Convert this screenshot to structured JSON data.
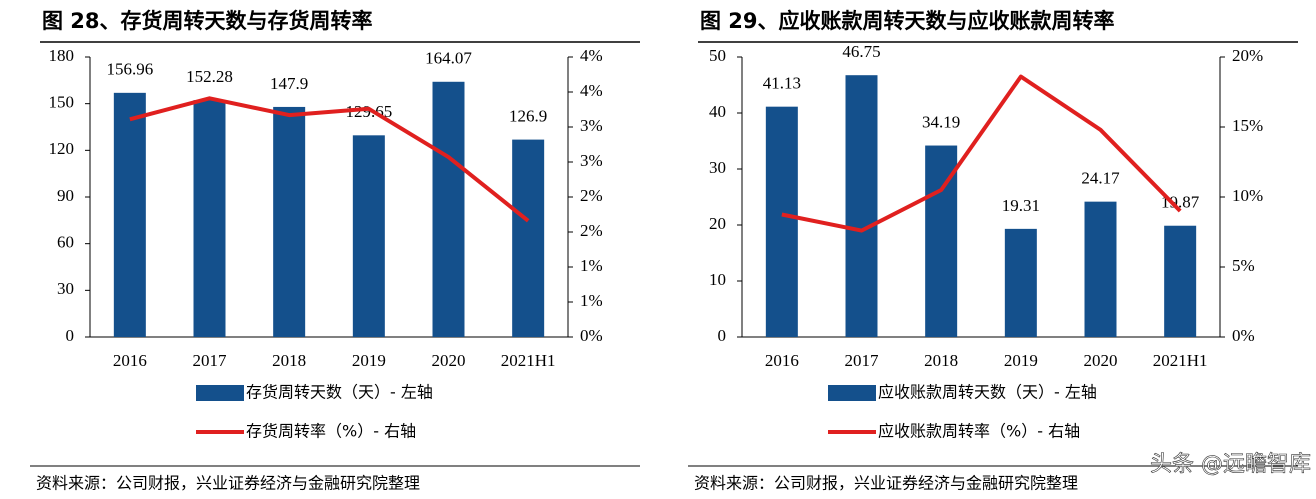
{
  "chart_data": [
    {
      "type": "bar",
      "title": "图 28、存货周转天数与存货周转率",
      "categories": [
        "2016",
        "2017",
        "2018",
        "2019",
        "2020",
        "2021H1"
      ],
      "series": [
        {
          "name": "存货周转天数（天）- 左轴",
          "color": "#14508c",
          "type": "bar",
          "values": [
            156.96,
            152.28,
            147.9,
            129.65,
            164.07,
            126.9
          ]
        },
        {
          "name": "存货周转率（%）- 右轴",
          "color": "#e0201f",
          "type": "line",
          "axis": "y2",
          "values": [
            3.11,
            3.41,
            3.17,
            3.26,
            2.57,
            1.66
          ]
        }
      ],
      "ylim": [
        0,
        180
      ],
      "yticks": [
        0,
        30,
        60,
        90,
        120,
        150,
        180
      ],
      "y2lim": [
        0,
        4
      ],
      "y2ticks": [
        {
          "value": 0,
          "label": "0%"
        },
        {
          "value": 0.5,
          "label": "1%"
        },
        {
          "value": 1,
          "label": "1%"
        },
        {
          "value": 1.5,
          "label": "2%"
        },
        {
          "value": 2,
          "label": "2%"
        },
        {
          "value": 2.5,
          "label": "3%"
        },
        {
          "value": 3,
          "label": "3%"
        },
        {
          "value": 3.5,
          "label": "4%"
        },
        {
          "value": 4,
          "label": "4%"
        }
      ],
      "source": "资料来源：公司财报，兴业证券经济与金融研究院整理"
    },
    {
      "type": "bar",
      "title": "图 29、应收账款周转天数与应收账款周转率",
      "categories": [
        "2016",
        "2017",
        "2018",
        "2019",
        "2020",
        "2021H1"
      ],
      "series": [
        {
          "name": "应收账款周转天数（天）- 左轴",
          "color": "#14508c",
          "type": "bar",
          "values": [
            41.13,
            46.75,
            34.19,
            19.31,
            24.17,
            19.87
          ]
        },
        {
          "name": "应收账款周转率（%）- 右轴",
          "color": "#e0201f",
          "type": "line",
          "axis": "y2",
          "values": [
            8.75,
            7.6,
            10.5,
            18.6,
            14.8,
            9.0
          ]
        }
      ],
      "ylim": [
        0,
        50
      ],
      "yticks": [
        0,
        10,
        20,
        30,
        40,
        50
      ],
      "y2lim": [
        0,
        20
      ],
      "y2ticks": [
        {
          "value": 0,
          "label": "0%"
        },
        {
          "value": 5,
          "label": "5%"
        },
        {
          "value": 10,
          "label": "10%"
        },
        {
          "value": 15,
          "label": "15%"
        },
        {
          "value": 20,
          "label": "20%"
        }
      ],
      "source": "资料来源：公司财报，兴业证券经济与金融研究院整理"
    }
  ],
  "watermark": "头条 @远瞻智库"
}
